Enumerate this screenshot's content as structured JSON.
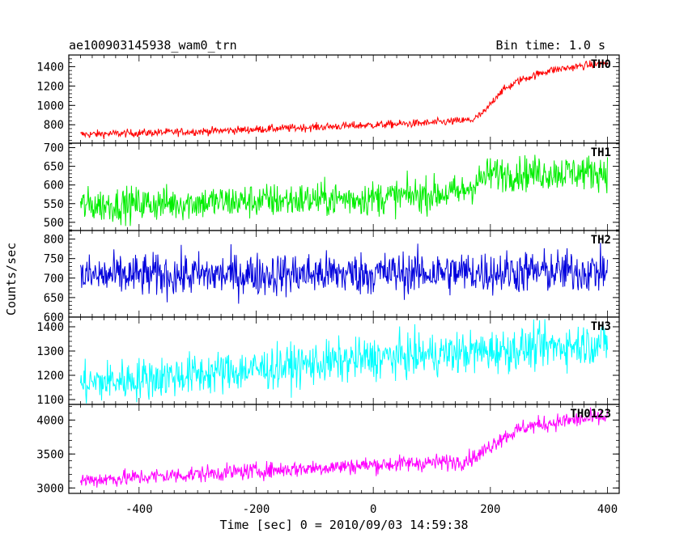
{
  "header": {
    "title": "ae100903145938_wam0_trn",
    "bin_time": "Bin time: 1.0 s"
  },
  "chart_data": {
    "type": "line",
    "title": "ae100903145938_wam0_trn",
    "subtitle": "Bin time: 1.0 s",
    "xlabel": "Time [sec] 0 = 2010/09/03 14:59:38",
    "ylabel": "Counts/sec",
    "xlim": [
      -520,
      420
    ],
    "x_ticks": [
      -400,
      -200,
      0,
      200,
      400
    ],
    "x_range_data": [
      -500,
      400
    ],
    "panels": [
      {
        "name": "TH0",
        "color": "#ff0000",
        "ylim": [
          610,
          1520
        ],
        "y_ticks": [
          800,
          1000,
          1200,
          1400
        ],
        "profile": [
          [
            -500,
            700
          ],
          [
            -300,
            730
          ],
          [
            -100,
            775
          ],
          [
            100,
            820
          ],
          [
            170,
            850
          ],
          [
            190,
            930
          ],
          [
            215,
            1130
          ],
          [
            250,
            1260
          ],
          [
            300,
            1360
          ],
          [
            360,
            1410
          ],
          [
            400,
            1440
          ]
        ],
        "noise": 70
      },
      {
        "name": "TH1",
        "color": "#00ee00",
        "ylim": [
          478,
          712
        ],
        "y_ticks": [
          500,
          550,
          600,
          650,
          700
        ],
        "profile": [
          [
            -500,
            545
          ],
          [
            0,
            565
          ],
          [
            150,
            580
          ],
          [
            200,
            630
          ],
          [
            400,
            635
          ]
        ],
        "noise": 80
      },
      {
        "name": "TH2",
        "color": "#0000dd",
        "ylim": [
          600,
          822
        ],
        "y_ticks": [
          600,
          650,
          700,
          750,
          800
        ],
        "profile": [
          [
            -500,
            705
          ],
          [
            400,
            718
          ]
        ],
        "noise": 95
      },
      {
        "name": "TH3",
        "color": "#00ffff",
        "ylim": [
          1080,
          1440
        ],
        "y_ticks": [
          1100,
          1200,
          1300,
          1400
        ],
        "profile": [
          [
            -500,
            1165
          ],
          [
            -200,
            1225
          ],
          [
            0,
            1270
          ],
          [
            200,
            1300
          ],
          [
            400,
            1335
          ]
        ],
        "noise": 150
      },
      {
        "name": "TH0123",
        "color": "#ff00ff",
        "ylim": [
          2920,
          4230
        ],
        "y_ticks": [
          3000,
          3500,
          4000
        ],
        "profile": [
          [
            -500,
            3110
          ],
          [
            -200,
            3250
          ],
          [
            0,
            3340
          ],
          [
            150,
            3390
          ],
          [
            180,
            3480
          ],
          [
            215,
            3720
          ],
          [
            260,
            3900
          ],
          [
            330,
            3990
          ],
          [
            400,
            4040
          ]
        ],
        "noise": 210
      }
    ]
  }
}
